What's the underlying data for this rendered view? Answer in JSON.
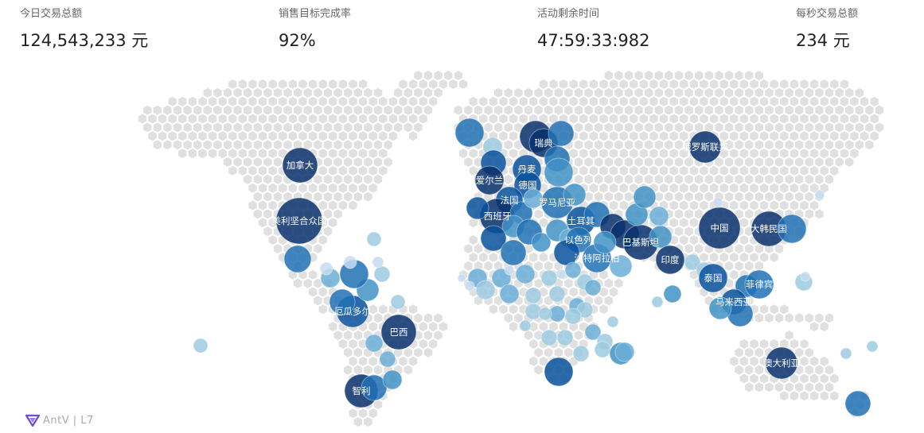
{
  "stats": [
    {
      "label": "今日交易总额",
      "value": "124,543,233 元"
    },
    {
      "label": "销售目标完成率",
      "value": "92%"
    },
    {
      "label": "活动剩余时间",
      "value": "47:59:33:982"
    },
    {
      "label": "每秒交易总额",
      "value": "234 元"
    }
  ],
  "map": {
    "base_color": "#e0e0e0",
    "bubble_colors": [
      "#c6dbef",
      "#9ecae1",
      "#6baed6",
      "#4292c6",
      "#2171b5",
      "#08519c",
      "#08306b"
    ],
    "labeled_countries": [
      "加拿大",
      "美利坚合众国",
      "厄瓜多尔",
      "巴西",
      "智利",
      "瑞典",
      "丹麦",
      "爱尔兰",
      "德国",
      "法国",
      "罗马尼亚",
      "西班牙",
      "土耳其",
      "以色列",
      "沙特阿拉伯",
      "巴基斯坦",
      "印度",
      "俄罗斯联邦",
      "中国",
      "大韩民国",
      "泰国",
      "菲律宾",
      "马来西亚",
      "澳大利亚"
    ]
  },
  "logo": {
    "text": "AntV | L7",
    "icon": "antv-logo-icon",
    "icon_color": "#6d4bd6"
  }
}
